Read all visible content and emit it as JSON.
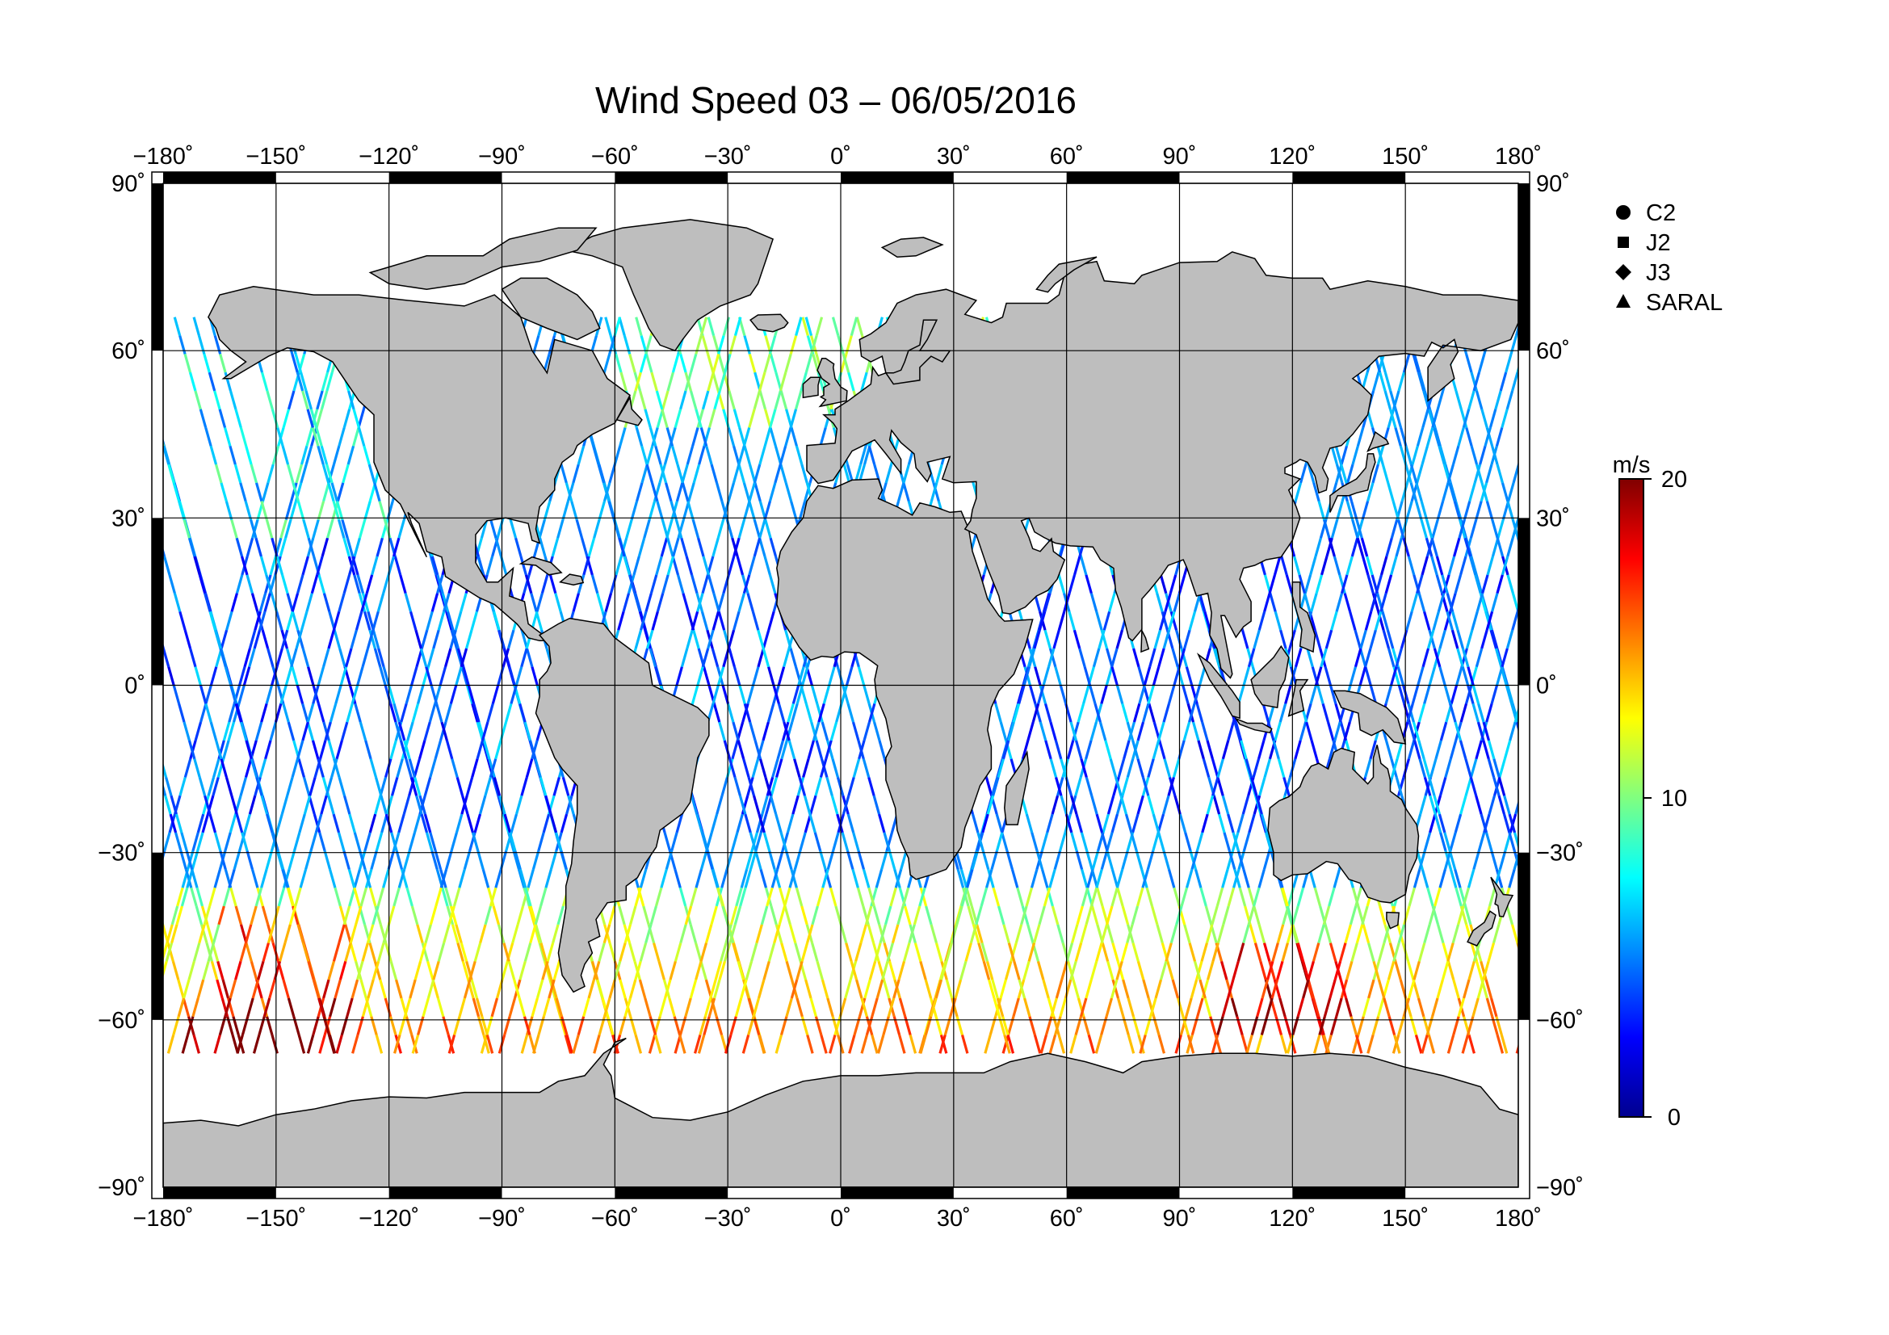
{
  "title": "Wind Speed 03 – 06/05/2016",
  "map": {
    "projection": "equirectangular",
    "lon_range": [
      -180,
      180
    ],
    "lat_range": [
      -90,
      90
    ],
    "lon_ticks": [
      -180,
      -150,
      -120,
      -90,
      -60,
      -30,
      0,
      30,
      60,
      90,
      120,
      150,
      180
    ],
    "lat_ticks": [
      90,
      60,
      30,
      0,
      -30,
      -60,
      -90
    ],
    "lon_tick_labels": [
      "−180˚",
      "−150˚",
      "−120˚",
      "−90˚",
      "−60˚",
      "−30˚",
      "0˚",
      "30˚",
      "60˚",
      "90˚",
      "120˚",
      "150˚",
      "180˚"
    ],
    "lat_tick_labels": [
      "90˚",
      "60˚",
      "30˚",
      "0˚",
      "−30˚",
      "−60˚",
      "−90˚"
    ],
    "grid": true,
    "land_color": "#bebebe",
    "ocean_color": "#ffffff",
    "coastline_color": "#000000"
  },
  "legend": {
    "placement": "top-right",
    "items": [
      {
        "label": "C2",
        "marker": "circle"
      },
      {
        "label": "J2",
        "marker": "square"
      },
      {
        "label": "J3",
        "marker": "diamond"
      },
      {
        "label": "SARAL",
        "marker": "triangle"
      }
    ]
  },
  "colorbar": {
    "unit": "m/s",
    "min": 0,
    "max": 20,
    "tick_values": [
      20,
      10,
      0
    ],
    "tick_labels": [
      "20",
      "10",
      "0"
    ],
    "colormap": "jet",
    "colors": [
      "#00008f",
      "#0000ff",
      "#0080ff",
      "#00ffff",
      "#80ff80",
      "#ffff00",
      "#ff8000",
      "#ff0000",
      "#800000"
    ]
  },
  "chart_data": {
    "type": "scatter",
    "title": "Wind Speed 03 – 06/05/2016",
    "xlabel": "",
    "ylabel": "",
    "xlim": [
      -180,
      180
    ],
    "ylim": [
      -90,
      90
    ],
    "color_variable": "wind speed",
    "color_unit": "m/s",
    "color_range": [
      0,
      20
    ],
    "series_markers": [
      "C2",
      "J2",
      "J3",
      "SARAL"
    ],
    "tracks": {
      "description_of_rendering": "satellite ground tracks over ocean; speeds colored by colormap",
      "regions": [
        {
          "lat_band": [
            45,
            75
          ],
          "lon_range": [
            -60,
            50
          ],
          "speed_typical": 8
        },
        {
          "lat_band": [
            10,
            60
          ],
          "lon_range": [
            -180,
            -120
          ],
          "speed_typical": 6
        },
        {
          "lat_band": [
            -30,
            30
          ],
          "lon_range": [
            -180,
            180
          ],
          "speed_typical": 5
        },
        {
          "lat_band": [
            -65,
            -30
          ],
          "lon_range": [
            -180,
            180
          ],
          "speed_typical": 11
        },
        {
          "lat_band": [
            -60,
            -45
          ],
          "lon_range": [
            100,
            130
          ],
          "speed_typical": 15
        },
        {
          "lat_band": [
            -65,
            -40
          ],
          "lon_range": [
            -160,
            -130
          ],
          "speed_typical": 14
        }
      ]
    }
  }
}
